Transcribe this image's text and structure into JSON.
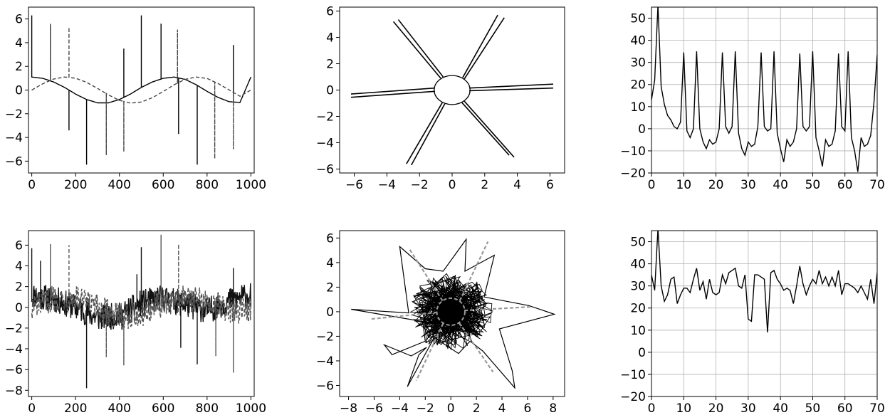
{
  "chart_data": [
    {
      "type": "line",
      "title": "",
      "xlabel": "",
      "ylabel": "",
      "xlim": [
        -15,
        1015
      ],
      "ylim": [
        -7,
        7
      ],
      "xticks": [
        0,
        200,
        400,
        600,
        800,
        1000
      ],
      "yticks": [
        -6,
        -4,
        -2,
        0,
        2,
        4,
        6
      ],
      "xtick_labels": [
        "0",
        "200",
        "400",
        "600",
        "800",
        "1000"
      ],
      "ytick_labels": [
        "−6",
        "−4",
        "−2",
        "0",
        "2",
        "4",
        "6"
      ],
      "grid": false,
      "series": [
        {
          "style": "solid",
          "color": "#000000",
          "x": [
            0,
            50,
            100,
            150,
            200,
            250,
            300,
            350,
            400,
            450,
            500,
            550,
            600,
            650,
            700,
            750,
            800,
            850,
            900,
            950,
            1000
          ],
          "y": [
            1.1,
            0.99,
            0.68,
            0.22,
            -0.34,
            -0.8,
            -1.08,
            -1.08,
            -0.8,
            -0.34,
            0.22,
            0.68,
            0.99,
            1.1,
            0.9,
            0.45,
            -0.11,
            -0.62,
            -0.98,
            -1.05,
            1.1
          ],
          "spikes": [
            [
              0,
              6.3
            ],
            [
              85,
              5.5
            ],
            [
              170,
              -3.4
            ],
            [
              250,
              -6.3
            ],
            [
              420,
              3.5
            ],
            [
              500,
              6.3
            ],
            [
              590,
              5.6
            ],
            [
              670,
              -3.7
            ],
            [
              755,
              -6.3
            ],
            [
              920,
              3.8
            ]
          ]
        },
        {
          "style": "dashed",
          "color": "#444444",
          "x": [
            0,
            50,
            100,
            150,
            200,
            250,
            300,
            350,
            400,
            450,
            500,
            550,
            600,
            650,
            700,
            750,
            800,
            850,
            900,
            950,
            1000
          ],
          "y": [
            0,
            0.53,
            0.93,
            1.1,
            1.0,
            0.65,
            0.14,
            -0.41,
            -0.87,
            -1.1,
            -1.01,
            -0.65,
            -0.12,
            0.45,
            0.9,
            1.1,
            0.98,
            0.55,
            0.02,
            -0.52,
            0.0
          ],
          "spikes": [
            [
              85,
              5.6
            ],
            [
              170,
              5.3
            ],
            [
              340,
              -5.5
            ],
            [
              420,
              -5.2
            ],
            [
              665,
              5.1
            ],
            [
              835,
              -5.8
            ],
            [
              920,
              -5.0
            ]
          ]
        }
      ]
    },
    {
      "type": "line",
      "title": "",
      "xlabel": "",
      "ylabel": "",
      "xlim": [
        -6.9,
        6.9
      ],
      "ylim": [
        -6.3,
        6.3
      ],
      "xticks": [
        -6,
        -4,
        -2,
        0,
        2,
        4,
        6
      ],
      "yticks": [
        -6,
        -4,
        -2,
        0,
        2,
        4,
        6
      ],
      "xtick_labels": [
        "−6",
        "−4",
        "−2",
        "0",
        "2",
        "4",
        "6"
      ],
      "ytick_labels": [
        "−6",
        "−4",
        "−2",
        "0",
        "2",
        "4",
        "6"
      ],
      "grid": false,
      "circle_radius": 1.1,
      "rays": [
        [
          [
            -1.05,
            0.15
          ],
          [
            -6.2,
            -0.3
          ]
        ],
        [
          [
            -1.05,
            -0.1
          ],
          [
            -6.2,
            -0.55
          ]
        ],
        [
          [
            -0.7,
            0.9
          ],
          [
            -3.6,
            5.2
          ]
        ],
        [
          [
            -0.55,
            1.0
          ],
          [
            -3.3,
            5.35
          ]
        ],
        [
          [
            0.65,
            0.95
          ],
          [
            2.8,
            5.7
          ]
        ],
        [
          [
            0.75,
            0.85
          ],
          [
            3.2,
            5.5
          ]
        ],
        [
          [
            1.05,
            0.15
          ],
          [
            6.2,
            0.45
          ]
        ],
        [
          [
            1.05,
            -0.05
          ],
          [
            6.2,
            0.15
          ]
        ],
        [
          [
            0.6,
            -0.95
          ],
          [
            3.5,
            -4.95
          ]
        ],
        [
          [
            0.75,
            -0.85
          ],
          [
            3.8,
            -5.1
          ]
        ],
        [
          [
            -0.6,
            -0.95
          ],
          [
            -2.8,
            -5.6
          ]
        ],
        [
          [
            -0.45,
            -1.05
          ],
          [
            -2.5,
            -5.7
          ]
        ]
      ]
    },
    {
      "type": "line",
      "title": "",
      "xlabel": "",
      "ylabel": "",
      "xlim": [
        0,
        70
      ],
      "ylim": [
        -20,
        55
      ],
      "xticks": [
        0,
        10,
        20,
        30,
        40,
        50,
        60,
        70
      ],
      "yticks": [
        -20,
        -10,
        0,
        10,
        20,
        30,
        40,
        50
      ],
      "xtick_labels": [
        "0",
        "10",
        "20",
        "30",
        "40",
        "50",
        "60",
        "70"
      ],
      "ytick_labels": [
        "−20",
        "−10",
        "0",
        "10",
        "20",
        "30",
        "40",
        "50"
      ],
      "grid": true,
      "x": [
        0,
        1,
        2,
        3,
        4,
        5,
        6,
        7,
        8,
        9,
        10,
        11,
        12,
        13,
        14,
        15,
        16,
        17,
        18,
        19,
        20,
        21,
        22,
        23,
        24,
        25,
        26,
        27,
        28,
        29,
        30,
        31,
        32,
        33,
        34,
        35,
        36,
        37,
        38,
        39,
        40,
        41,
        42,
        43,
        44,
        45,
        46,
        47,
        48,
        49,
        50,
        51,
        52,
        53,
        54,
        55,
        56,
        57,
        58,
        59,
        60,
        61,
        62,
        63,
        64,
        65,
        66,
        67,
        68,
        69,
        70
      ],
      "values": [
        13,
        22,
        56,
        19,
        11,
        6,
        4,
        1,
        0,
        3,
        34.5,
        -1,
        -4,
        0,
        35,
        0,
        -6,
        -9,
        -5,
        -7,
        -6,
        0,
        34.5,
        1,
        -2,
        1,
        35,
        -2,
        -9,
        -12,
        -6,
        -8,
        -7,
        1,
        34.5,
        1,
        -1,
        0,
        35,
        -2,
        -9,
        -15,
        -5,
        -8,
        -6,
        0,
        34,
        1,
        -1,
        1,
        35,
        -4,
        -10,
        -17,
        -5,
        -8,
        -7,
        -1,
        34,
        1,
        -1,
        35,
        -4,
        -10,
        -19.5,
        -4,
        -8,
        -7,
        -3,
        12,
        33.5
      ]
    },
    {
      "type": "line",
      "title": "",
      "xlabel": "",
      "ylabel": "",
      "xlim": [
        -15,
        1015
      ],
      "ylim": [
        -8.6,
        7.4
      ],
      "xticks": [
        0,
        200,
        400,
        600,
        800,
        1000
      ],
      "yticks": [
        -8,
        -6,
        -4,
        -2,
        0,
        2,
        4,
        6
      ],
      "xtick_labels": [
        "0",
        "200",
        "400",
        "600",
        "800",
        "1000"
      ],
      "ytick_labels": [
        "−8",
        "−6",
        "−4",
        "−2",
        "0",
        "2",
        "4",
        "6"
      ],
      "grid": false,
      "noise_amplitude": 1.3,
      "series": [
        {
          "style": "solid",
          "color": "#111111",
          "x": [
            0,
            100,
            200,
            300,
            400,
            500,
            600,
            700,
            800,
            900,
            1000
          ],
          "y": [
            1.2,
            0.8,
            0.0,
            -1.0,
            -0.8,
            0.4,
            0.9,
            0.3,
            -0.3,
            0.6,
            1.2
          ],
          "spikes": [
            [
              0,
              5.7
            ],
            [
              40,
              4.5
            ],
            [
              250,
              -7.8
            ],
            [
              480,
              3.2
            ],
            [
              500,
              5.8
            ],
            [
              680,
              -3.9
            ],
            [
              755,
              -5.5
            ],
            [
              920,
              3.8
            ]
          ]
        },
        {
          "style": "dashed",
          "color": "#555555",
          "x": [
            0,
            100,
            200,
            300,
            400,
            500,
            600,
            700,
            800,
            900,
            1000
          ],
          "y": [
            0.0,
            0.9,
            0.9,
            -0.1,
            -0.9,
            -0.6,
            0.4,
            0.9,
            0.5,
            -0.4,
            -0.1
          ],
          "spikes": [
            [
              85,
              6.1
            ],
            [
              170,
              6.0
            ],
            [
              340,
              -4.8
            ],
            [
              420,
              -5.6
            ],
            [
              590,
              7.0
            ],
            [
              670,
              6.1
            ],
            [
              840,
              -4.7
            ],
            [
              920,
              -6.3
            ]
          ]
        }
      ]
    },
    {
      "type": "line",
      "title": "",
      "xlabel": "",
      "ylabel": "",
      "xlim": [
        -8.7,
        8.9
      ],
      "ylim": [
        -6.9,
        6.6
      ],
      "xticks": [
        -8,
        -6,
        -4,
        -2,
        0,
        2,
        4,
        6,
        8
      ],
      "yticks": [
        -6,
        -4,
        -2,
        0,
        2,
        4,
        6
      ],
      "xtick_labels": [
        "−8",
        "−6",
        "−4",
        "−2",
        "0",
        "2",
        "4",
        "6",
        "8"
      ],
      "ytick_labels": [
        "−6",
        "−4",
        "−2",
        "0",
        "2",
        "4",
        "6"
      ],
      "grid": false,
      "circle_radius": 1.1,
      "outer_polygon": [
        [
          -7.8,
          0.2
        ],
        [
          -3.3,
          -0.1
        ],
        [
          -4.0,
          5.3
        ],
        [
          -2.0,
          3.5
        ],
        [
          -0.6,
          3.3
        ],
        [
          1.2,
          5.9
        ],
        [
          1.1,
          3.3
        ],
        [
          3.4,
          4.6
        ],
        [
          2.6,
          1.2
        ],
        [
          6.1,
          0.5
        ],
        [
          8.1,
          -0.2
        ],
        [
          3.8,
          -1.4
        ],
        [
          4.8,
          -4.8
        ],
        [
          5.0,
          -6.2
        ],
        [
          2.5,
          -3.2
        ],
        [
          1.5,
          -2.4
        ],
        [
          0.6,
          -3.4
        ],
        [
          -1.3,
          -2.1
        ],
        [
          -3.4,
          -6.1
        ],
        [
          -2.5,
          -3.5
        ],
        [
          -1.9,
          -2.9
        ],
        [
          -3.1,
          -3.6
        ],
        [
          -5.2,
          -2.7
        ],
        [
          -4.6,
          -3.5
        ],
        [
          -2.0,
          -2.4
        ],
        [
          -2.2,
          -0.8
        ],
        [
          -5.0,
          -0.3
        ],
        [
          -7.8,
          0.2
        ]
      ],
      "guide_rays": [
        [
          [
            -1.05,
            -0.05
          ],
          [
            -6.3,
            -0.6
          ]
        ],
        [
          [
            -0.65,
            0.9
          ],
          [
            -3.3,
            5.2
          ]
        ],
        [
          [
            0.7,
            0.9
          ],
          [
            2.9,
            5.7
          ]
        ],
        [
          [
            1.05,
            0.1
          ],
          [
            6.3,
            0.4
          ]
        ],
        [
          [
            0.65,
            -0.9
          ],
          [
            3.3,
            -4.9
          ]
        ],
        [
          [
            -0.6,
            -0.95
          ],
          [
            -2.7,
            -5.6
          ]
        ]
      ]
    },
    {
      "type": "line",
      "title": "",
      "xlabel": "",
      "ylabel": "",
      "xlim": [
        0,
        70
      ],
      "ylim": [
        -20,
        55
      ],
      "xticks": [
        0,
        10,
        20,
        30,
        40,
        50,
        60,
        70
      ],
      "yticks": [
        -20,
        -10,
        0,
        10,
        20,
        30,
        40,
        50
      ],
      "xtick_labels": [
        "0",
        "10",
        "20",
        "30",
        "40",
        "50",
        "60",
        "70"
      ],
      "ytick_labels": [
        "−20",
        "−10",
        "0",
        "10",
        "20",
        "30",
        "40",
        "50"
      ],
      "grid": true,
      "x": [
        0,
        1,
        2,
        3,
        4,
        5,
        6,
        7,
        8,
        9,
        10,
        11,
        12,
        13,
        14,
        15,
        16,
        17,
        18,
        19,
        20,
        21,
        22,
        23,
        24,
        25,
        26,
        27,
        28,
        29,
        30,
        31,
        32,
        33,
        34,
        35,
        36,
        37,
        38,
        39,
        40,
        41,
        42,
        43,
        44,
        45,
        46,
        47,
        48,
        49,
        50,
        51,
        52,
        53,
        54,
        55,
        56,
        57,
        58,
        59,
        60,
        61,
        62,
        63,
        64,
        65,
        66,
        67,
        68,
        69,
        70
      ],
      "values": [
        35,
        28,
        56,
        30,
        23,
        26,
        33,
        34,
        22,
        26,
        29,
        29,
        27,
        33,
        38,
        28,
        32,
        24,
        33,
        27,
        26,
        27,
        35,
        31,
        36,
        37,
        38,
        30,
        29,
        35,
        15,
        14,
        35,
        35,
        34,
        33,
        9,
        36,
        37,
        33,
        31,
        28,
        29,
        28,
        22,
        30,
        39,
        31,
        26,
        30,
        33,
        31,
        37,
        31,
        34,
        30,
        34,
        30,
        37,
        26,
        31,
        31,
        30,
        29,
        27,
        30,
        27,
        24,
        33,
        22,
        36
      ]
    }
  ]
}
